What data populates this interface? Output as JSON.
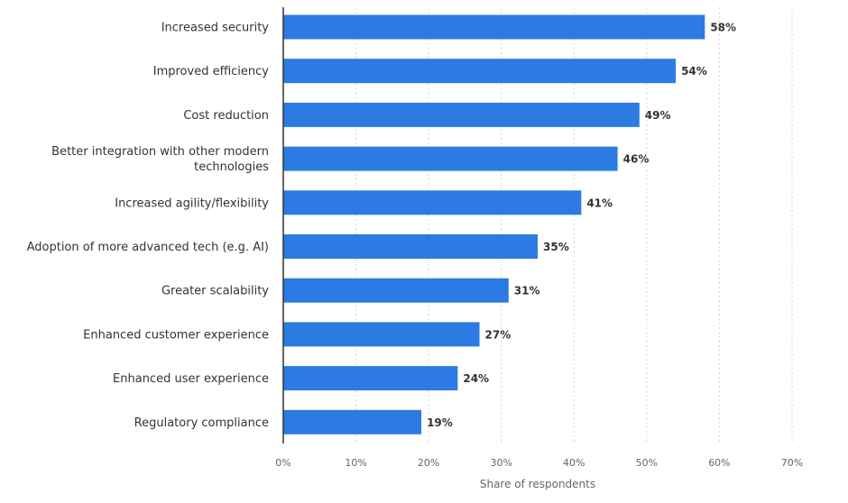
{
  "chart_data": {
    "type": "bar",
    "orientation": "horizontal",
    "categories": [
      "Increased security",
      "Improved efficiency",
      "Cost reduction",
      "Better integration with other modern technologies",
      "Increased agility/flexibility",
      "Adoption of more advanced tech (e.g. AI)",
      "Greater scalability",
      "Enhanced customer experience",
      "Enhanced user experience",
      "Regulatory compliance"
    ],
    "category_label_lines": [
      [
        "Increased security"
      ],
      [
        "Improved efficiency"
      ],
      [
        "Cost reduction"
      ],
      [
        "Better integration with other modern",
        "technologies"
      ],
      [
        "Increased agility/flexibility"
      ],
      [
        "Adoption of more advanced tech (e.g. AI)"
      ],
      [
        "Greater scalability"
      ],
      [
        "Enhanced customer experience"
      ],
      [
        "Enhanced user experience"
      ],
      [
        "Regulatory compliance"
      ]
    ],
    "values": [
      58,
      54,
      49,
      46,
      41,
      35,
      31,
      27,
      24,
      19
    ],
    "value_labels": [
      "58%",
      "54%",
      "49%",
      "46%",
      "41%",
      "35%",
      "31%",
      "27%",
      "24%",
      "19%"
    ],
    "xlim": [
      0,
      70
    ],
    "x_ticks": [
      0,
      10,
      20,
      30,
      40,
      50,
      60,
      70
    ],
    "x_tick_labels": [
      "0%",
      "10%",
      "20%",
      "30%",
      "40%",
      "50%",
      "60%",
      "70%"
    ],
    "xlabel": "Share of respondents",
    "ylabel": "",
    "title": "",
    "grid": true,
    "grid_style": "dotted vertical",
    "legend": "none",
    "bar_color": "#2b7be2",
    "grid_color": "#d6d6d6",
    "axis_color": "#333333"
  }
}
